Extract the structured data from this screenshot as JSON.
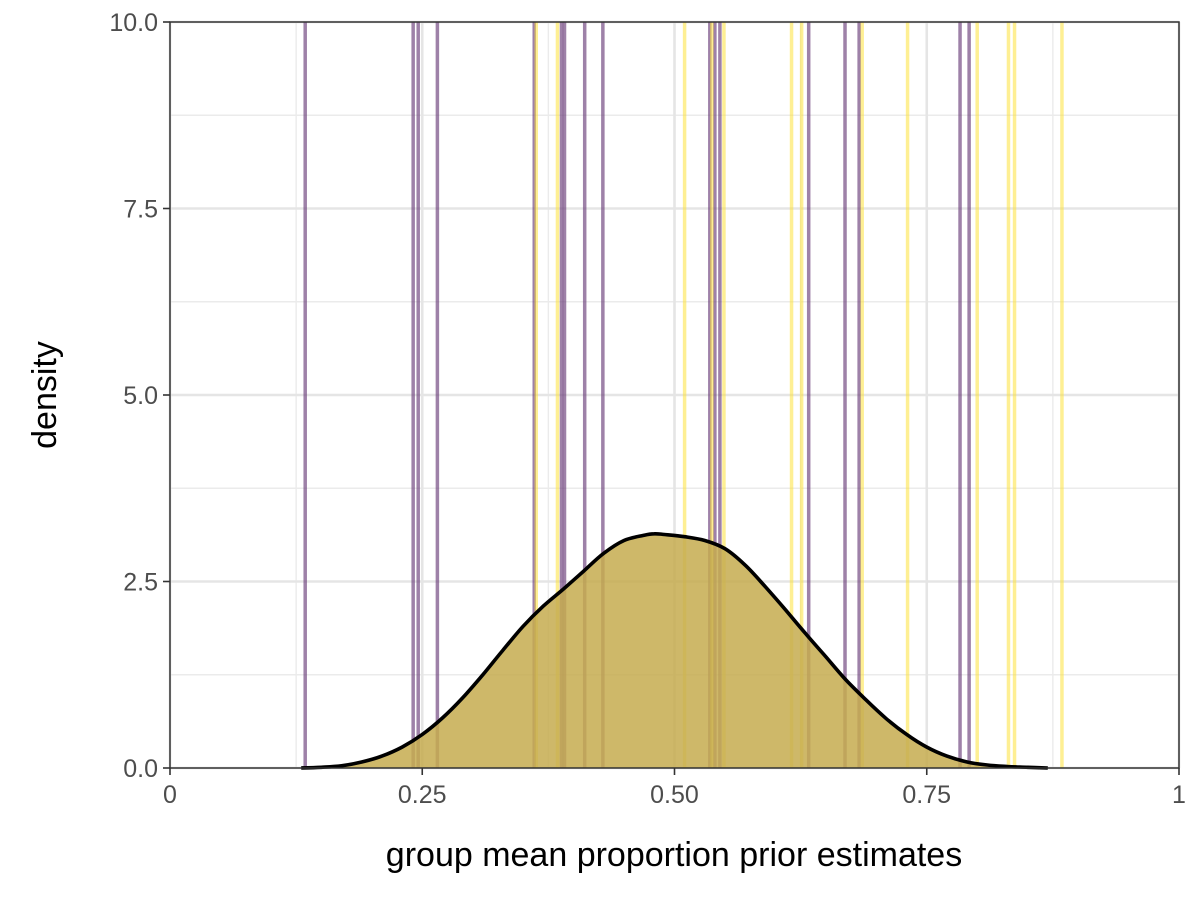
{
  "chart_data": {
    "type": "area",
    "title": "",
    "xlabel": "group mean proportion prior estimates",
    "ylabel": "density",
    "xlim": [
      0,
      1
    ],
    "ylim": [
      0,
      10
    ],
    "x_ticks": [
      {
        "value": 0,
        "label": "0"
      },
      {
        "value": 0.25,
        "label": "0.25"
      },
      {
        "value": 0.5,
        "label": "0.50"
      },
      {
        "value": 0.75,
        "label": "0.75"
      },
      {
        "value": 1,
        "label": "1"
      }
    ],
    "y_ticks": [
      {
        "value": 0,
        "label": "0.0"
      },
      {
        "value": 2.5,
        "label": "2.5"
      },
      {
        "value": 5,
        "label": "5.0"
      },
      {
        "value": 7.5,
        "label": "7.5"
      },
      {
        "value": 10,
        "label": "10.0"
      }
    ],
    "grid": true,
    "density": {
      "fill_color": "#c6ab4f",
      "line_color": "#000000",
      "x": [
        0.13,
        0.15,
        0.17,
        0.19,
        0.21,
        0.23,
        0.25,
        0.27,
        0.29,
        0.31,
        0.33,
        0.35,
        0.37,
        0.39,
        0.41,
        0.43,
        0.45,
        0.47,
        0.48,
        0.49,
        0.51,
        0.53,
        0.55,
        0.57,
        0.59,
        0.61,
        0.63,
        0.65,
        0.67,
        0.69,
        0.71,
        0.73,
        0.75,
        0.77,
        0.79,
        0.81,
        0.83,
        0.85,
        0.87
      ],
      "y": [
        0.0,
        0.01,
        0.03,
        0.08,
        0.16,
        0.28,
        0.45,
        0.67,
        0.94,
        1.25,
        1.58,
        1.9,
        2.17,
        2.4,
        2.64,
        2.88,
        3.05,
        3.12,
        3.14,
        3.13,
        3.1,
        3.05,
        2.94,
        2.72,
        2.43,
        2.12,
        1.8,
        1.49,
        1.18,
        0.91,
        0.66,
        0.45,
        0.28,
        0.16,
        0.08,
        0.04,
        0.02,
        0.01,
        0.0
      ]
    },
    "vlines": [
      {
        "color": "#6a3d7a",
        "opacity": 0.65,
        "x": [
          0.134,
          0.241,
          0.246,
          0.265,
          0.361,
          0.388,
          0.391,
          0.411,
          0.429,
          0.535,
          0.54,
          0.545,
          0.633,
          0.669,
          0.683,
          0.783,
          0.792
        ]
      },
      {
        "color": "#fde13a",
        "opacity": 0.55,
        "x": [
          0.363,
          0.384,
          0.51,
          0.537,
          0.549,
          0.616,
          0.626,
          0.686,
          0.731,
          0.8,
          0.831,
          0.837,
          0.884
        ]
      }
    ]
  }
}
